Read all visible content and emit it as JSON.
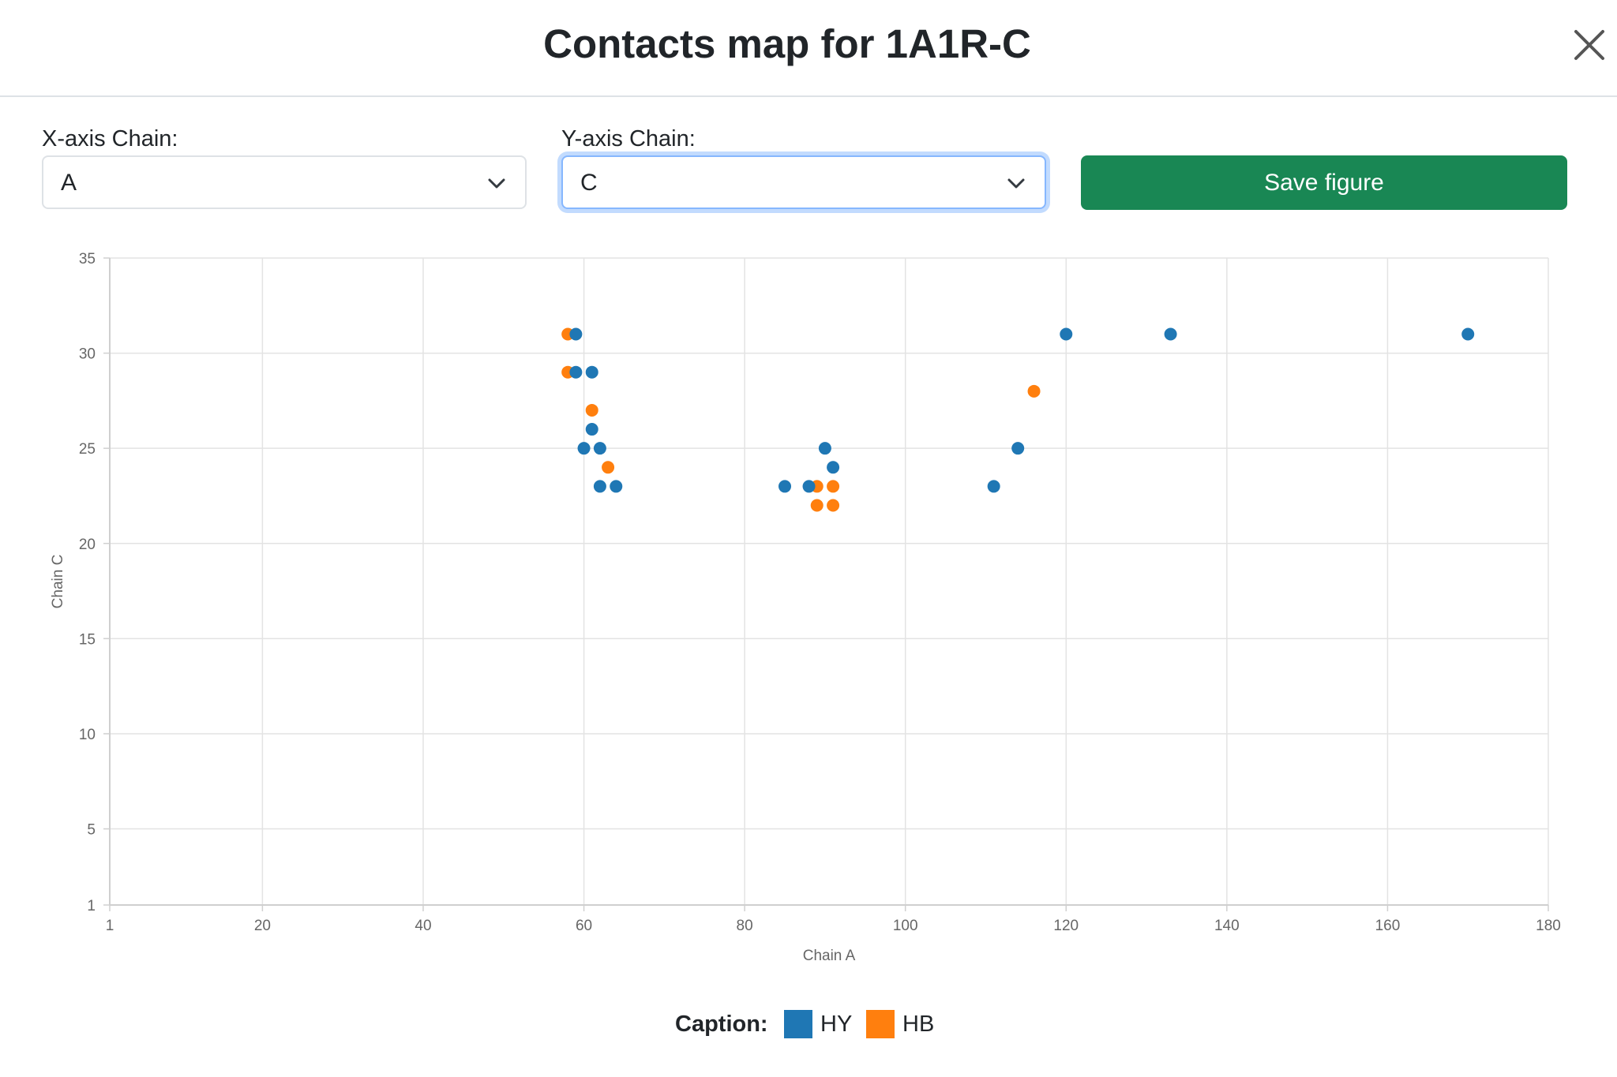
{
  "modal": {
    "title": "Contacts map for 1A1R-C",
    "close_icon": "close-icon"
  },
  "controls": {
    "x_axis": {
      "label": "X-axis Chain:",
      "value": "A"
    },
    "y_axis": {
      "label": "Y-axis Chain:",
      "value": "C"
    },
    "save_label": "Save figure"
  },
  "colors": {
    "save_button": "#198754",
    "hy": "#1f77b4",
    "hb": "#ff7f0e",
    "focus_ring": "#86b7fe"
  },
  "caption": {
    "title": "Caption:",
    "items": [
      {
        "label": "HY",
        "color": "#1f77b4"
      },
      {
        "label": "HB",
        "color": "#ff7f0e"
      }
    ]
  },
  "chart_data": {
    "type": "scatter",
    "xlabel": "Chain A",
    "ylabel": "Chain C",
    "xlim": [
      1,
      180
    ],
    "ylim": [
      1,
      35
    ],
    "xticks": [
      1,
      20,
      40,
      60,
      80,
      100,
      120,
      140,
      160,
      180
    ],
    "yticks": [
      1,
      5,
      10,
      15,
      20,
      25,
      30,
      35
    ],
    "grid": true,
    "series": [
      {
        "name": "HY",
        "color": "#1f77b4",
        "points": [
          [
            59,
            31
          ],
          [
            59,
            29
          ],
          [
            61,
            29
          ],
          [
            61,
            26
          ],
          [
            60,
            25
          ],
          [
            62,
            25
          ],
          [
            62,
            23
          ],
          [
            64,
            23
          ],
          [
            85,
            23
          ],
          [
            88,
            23
          ],
          [
            90,
            25
          ],
          [
            91,
            24
          ],
          [
            111,
            23
          ],
          [
            114,
            25
          ],
          [
            120,
            31
          ],
          [
            133,
            31
          ],
          [
            170,
            31
          ]
        ]
      },
      {
        "name": "HB",
        "color": "#ff7f0e",
        "points": [
          [
            58,
            31
          ],
          [
            58,
            29
          ],
          [
            61,
            27
          ],
          [
            63,
            24
          ],
          [
            89,
            23
          ],
          [
            91,
            23
          ],
          [
            89,
            22
          ],
          [
            91,
            22
          ],
          [
            116,
            28
          ]
        ]
      }
    ]
  }
}
